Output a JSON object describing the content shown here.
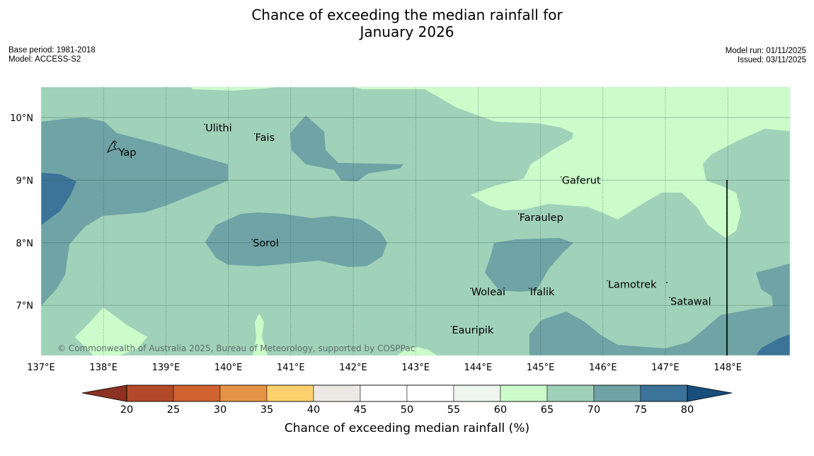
{
  "header": {
    "title_line1": "Chance of exceeding the median rainfall for",
    "title_line2": "January 2026",
    "base_period": "Base period: 1981-2018",
    "model": "Model: ACCESS-S2",
    "model_run": "Model run: 01/11/2025",
    "issued": "Issued: 03/11/2025"
  },
  "map": {
    "lon_range": [
      137,
      149
    ],
    "lat_range": [
      6.2,
      10.5
    ],
    "lon_ticks": [
      "137°E",
      "138°E",
      "139°E",
      "140°E",
      "141°E",
      "142°E",
      "143°E",
      "144°E",
      "145°E",
      "146°E",
      "147°E",
      "148°E"
    ],
    "lat_ticks": [
      "10°N",
      "9°N",
      "8°N",
      "7°N"
    ],
    "places": [
      {
        "name": "Yap",
        "lon": 138.23,
        "lat": 9.48
      },
      {
        "name": "Ulithi",
        "lon": 139.62,
        "lat": 9.87
      },
      {
        "name": "Fais",
        "lon": 140.42,
        "lat": 9.72
      },
      {
        "name": "Gaferut",
        "lon": 145.33,
        "lat": 9.03
      },
      {
        "name": "Faraulep",
        "lon": 144.65,
        "lat": 8.44
      },
      {
        "name": "Sorol",
        "lon": 140.38,
        "lat": 8.03
      },
      {
        "name": "Lamotrek",
        "lon": 146.07,
        "lat": 7.37
      },
      {
        "name": "Satawal",
        "lon": 147.07,
        "lat": 7.1
      },
      {
        "name": "Woleai",
        "lon": 143.88,
        "lat": 7.25
      },
      {
        "name": "Ifalik",
        "lon": 144.82,
        "lat": 7.25
      },
      {
        "name": "Eauripik",
        "lon": 143.57,
        "lat": 6.64
      }
    ],
    "copyright": "© Commonwealth of Australia 2025, Bureau of Meteorology, supported by COSPPac"
  },
  "colorbar": {
    "label": "Chance of exceeding median rainfall (%)",
    "ticks": [
      "20",
      "25",
      "30",
      "35",
      "40",
      "45",
      "50",
      "55",
      "60",
      "65",
      "70",
      "75",
      "80"
    ],
    "colors": [
      "#b4492a",
      "#d0632f",
      "#e59447",
      "#fdd06e",
      "#ede9e4",
      "#ffffff",
      "#ffffff",
      "#eef5ee",
      "#cbfcca",
      "#a0d1b9",
      "#6fa3a5",
      "#3b7399"
    ],
    "under_color": "#8c3222",
    "over_color": "#184e7c"
  },
  "legend_colors": {
    "c60_65": "#cbfcca",
    "c65_70": "#a0d1b9",
    "c70_75": "#6fa3a5",
    "c75_80": "#3b7399",
    "c80_plus": "#184e7c"
  }
}
